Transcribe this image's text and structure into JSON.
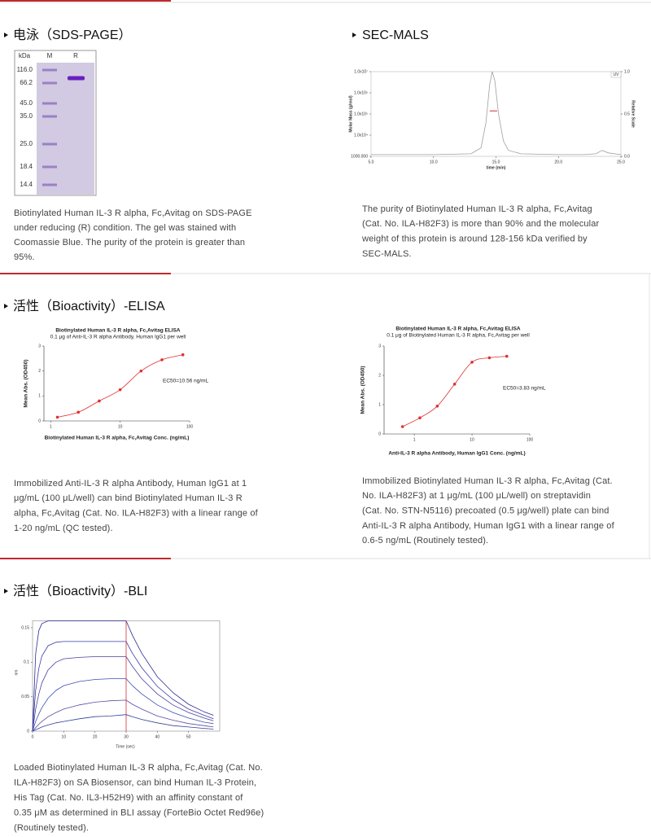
{
  "sds_page": {
    "title": "电泳（SDS-PAGE）",
    "gel": {
      "unit": "kDa",
      "lanes": [
        "M",
        "R"
      ],
      "markers": [
        {
          "value": 116,
          "label": "116.0"
        },
        {
          "value": 66.2,
          "label": "66.2"
        },
        {
          "value": 45,
          "label": "45.0"
        },
        {
          "value": 35,
          "label": "35.0"
        },
        {
          "value": 25,
          "label": "25.0"
        },
        {
          "value": 18.4,
          "label": "18.4"
        },
        {
          "value": 14.4,
          "label": "14.4"
        }
      ]
    },
    "caption": [
      "Biotinylated Human IL-3 R alpha, Fc,Avitag on SDS-PAGE",
      "under reducing (R) condition. The gel was stained with",
      "Coomassie Blue. The purity of the protein is greater than",
      "95%."
    ]
  },
  "sec_mals": {
    "title": "SEC-MALS",
    "chart": {
      "type": "line",
      "xlabel": "time (min)",
      "ylabel": "Molar Mass (g/mol)",
      "y2label": "Relative Scale",
      "xlim": [
        5,
        25
      ],
      "xticks": [
        {
          "value": 5,
          "label": "5.0"
        },
        {
          "value": 10,
          "label": "10.0"
        },
        {
          "value": 15,
          "label": "15.0"
        },
        {
          "value": 20,
          "label": "20.0"
        },
        {
          "value": 25,
          "label": "25.0"
        }
      ],
      "ylim": [
        1000,
        10000000
      ],
      "yscale": "log",
      "yticks": [
        {
          "value": 10000000,
          "label": "1.0x10⁷"
        },
        {
          "value": 1000000,
          "label": "1.0x10⁶"
        },
        {
          "value": 100000,
          "label": "1.0x10⁵"
        },
        {
          "value": 10000,
          "label": "1.0x10⁴"
        },
        {
          "value": 1000,
          "label": "1000.000"
        }
      ],
      "y2lim": [
        0,
        1
      ],
      "y2ticks": [
        {
          "value": 1,
          "label": "1.0"
        },
        {
          "value": 0.5,
          "label": "0.5"
        },
        {
          "value": 0,
          "label": "0.0"
        }
      ],
      "series": [
        {
          "name": "UV",
          "color": "#a0a0a0",
          "axis": "y2",
          "x": [
            5,
            10,
            13,
            13.8,
            14.2,
            14.5,
            14.7,
            14.9,
            15.2,
            15.6,
            16,
            17,
            20,
            22,
            23,
            23.5,
            24,
            25
          ],
          "values": [
            0.02,
            0.02,
            0.03,
            0.1,
            0.4,
            0.85,
            1,
            0.9,
            0.5,
            0.18,
            0.07,
            0.03,
            0.02,
            0.02,
            0.03,
            0.07,
            0.04,
            0.02
          ]
        },
        {
          "color": "#d03030",
          "x": [
            14.5,
            14.8,
            15.1
          ],
          "values": [
            140000,
            140000,
            140000
          ]
        }
      ]
    },
    "caption": [
      "The purity of Biotinylated Human IL-3 R alpha, Fc,Avitag",
      "(Cat. No. ILA-H82F3) is more than 90% and the molecular",
      "weight of this protein is around 128-156 kDa verified by",
      "SEC-MALS."
    ]
  },
  "elisa": {
    "title": "活性（Bioactivity）-ELISA",
    "panels": [
      {
        "chart": {
          "type": "scatter",
          "title": "Biotinylated Human IL-3 R alpha, Fc,Avitag ELISA",
          "subtitle": "0.1 μg of Anti-IL-3 R alpha Antibody, Human IgG1 per well",
          "xlabel": "Biotinylated Human IL-3 R alpha, Fc,Avitag Conc. (ng/mL)",
          "ylabel": "Mean Abs. (OD450)",
          "annotation": "EC50=10.56 ng/mL",
          "xscale": "log",
          "xlim": [
            0.8,
            100
          ],
          "xticks": [
            1,
            10,
            100
          ],
          "ylim": [
            0,
            3
          ],
          "yticks": [
            0,
            1,
            2,
            3
          ],
          "color": "#e03030",
          "x": [
            1.25,
            2.5,
            5,
            10,
            20,
            40,
            80
          ],
          "values": [
            0.15,
            0.35,
            0.8,
            1.25,
            2,
            2.45,
            2.65
          ]
        },
        "caption": [
          "Immobilized Anti-IL-3 R alpha Antibody, Human IgG1 at 1",
          "μg/mL (100 μL/well) can bind Biotinylated Human IL-3 R",
          "alpha, Fc,Avitag (Cat. No. ILA-H82F3) with a linear range of",
          "1-20 ng/mL (QC tested)."
        ]
      },
      {
        "chart": {
          "type": "scatter",
          "title": "Biotinylated Human IL-3 R alpha, Fc,Avitag ELISA",
          "subtitle": "0.1 μg of Biotinylated Human IL-3 R alpha, Fc,Avitag per well",
          "xlabel": "Anti-IL-3 R alpha Antibody, Human IgG1 Conc. (ng/mL)",
          "ylabel": "Mean Abs. (OD450)",
          "annotation": "EC50=3.83 ng/mL",
          "xscale": "log",
          "xlim": [
            0.3,
            100
          ],
          "xticks": [
            1,
            10,
            100
          ],
          "ylim": [
            0,
            3
          ],
          "yticks": [
            0,
            1,
            2,
            3
          ],
          "color": "#e03030",
          "x": [
            0.625,
            1.25,
            2.5,
            5,
            10,
            20,
            40
          ],
          "values": [
            0.25,
            0.55,
            0.95,
            1.7,
            2.45,
            2.6,
            2.65
          ]
        },
        "caption": [
          "Immobilized Biotinylated Human IL-3 R alpha, Fc,Avitag (Cat.",
          "No. ILA-H82F3) at 1 μg/mL (100 μL/well) on streptavidin",
          "(Cat. No. STN-N5116) precoated (0.5 μg/well) plate can bind",
          "Anti-IL-3 R alpha Antibody, Human IgG1 with a linear range of",
          "0.6-5 ng/mL (Routinely tested)."
        ]
      }
    ]
  },
  "bli": {
    "title": "活性（Bioactivity）-BLI",
    "chart": {
      "type": "line",
      "xlabel": "Time (sec)",
      "ylabel": "nm",
      "xlim": [
        0,
        60
      ],
      "xticks": [
        0,
        10,
        20,
        30,
        40,
        50
      ],
      "ylim": [
        0,
        0.16
      ],
      "yticks": [
        0,
        0.05,
        0.1,
        0.15
      ],
      "vline": 30,
      "vline_color": "#d03030",
      "x": [
        0,
        1,
        2,
        3,
        5,
        7.5,
        10,
        15,
        20,
        25,
        30,
        32,
        35,
        40,
        45,
        50,
        55,
        58
      ],
      "series": [
        {
          "color": "#2b2b8f",
          "values": [
            0,
            0.112,
            0.146,
            0.156,
            0.16,
            0.16,
            0.16,
            0.16,
            0.16,
            0.16,
            0.16,
            0.139,
            0.113,
            0.079,
            0.056,
            0.039,
            0.028,
            0.023
          ]
        },
        {
          "color": "#3c3ca8",
          "values": [
            0,
            0.059,
            0.091,
            0.109,
            0.124,
            0.129,
            0.13,
            0.13,
            0.13,
            0.13,
            0.13,
            0.113,
            0.092,
            0.065,
            0.046,
            0.032,
            0.023,
            0.018
          ]
        },
        {
          "color": "#4a3f9c",
          "values": [
            0,
            0.032,
            0.054,
            0.07,
            0.089,
            0.1,
            0.105,
            0.107,
            0.108,
            0.108,
            0.108,
            0.094,
            0.076,
            0.054,
            0.038,
            0.027,
            0.019,
            0.015
          ]
        },
        {
          "color": "#3a4fb0",
          "values": [
            0,
            0.014,
            0.025,
            0.034,
            0.048,
            0.059,
            0.066,
            0.072,
            0.075,
            0.076,
            0.076,
            0.066,
            0.054,
            0.038,
            0.027,
            0.019,
            0.013,
            0.011
          ]
        },
        {
          "color": "#5a4aa0",
          "values": [
            0,
            0.005,
            0.01,
            0.014,
            0.021,
            0.027,
            0.032,
            0.038,
            0.042,
            0.044,
            0.045,
            0.039,
            0.032,
            0.022,
            0.016,
            0.011,
            0.008,
            0.006
          ]
        },
        {
          "color": "#2f3f9a",
          "values": [
            0,
            0.002,
            0.004,
            0.006,
            0.009,
            0.012,
            0.014,
            0.018,
            0.021,
            0.022,
            0.024,
            0.021,
            0.017,
            0.012,
            0.008,
            0.006,
            0.004,
            0.003
          ]
        }
      ]
    },
    "caption": [
      "Loaded Biotinylated Human IL-3 R alpha, Fc,Avitag (Cat. No.",
      "ILA-H82F3) on SA Biosensor, can bind Human IL-3 Protein,",
      "His Tag (Cat. No. IL3-H52H9) with an affinity constant of",
      "0.35 μM as determined in BLI assay (ForteBio Octet Red96e)",
      "(Routinely tested)."
    ]
  }
}
